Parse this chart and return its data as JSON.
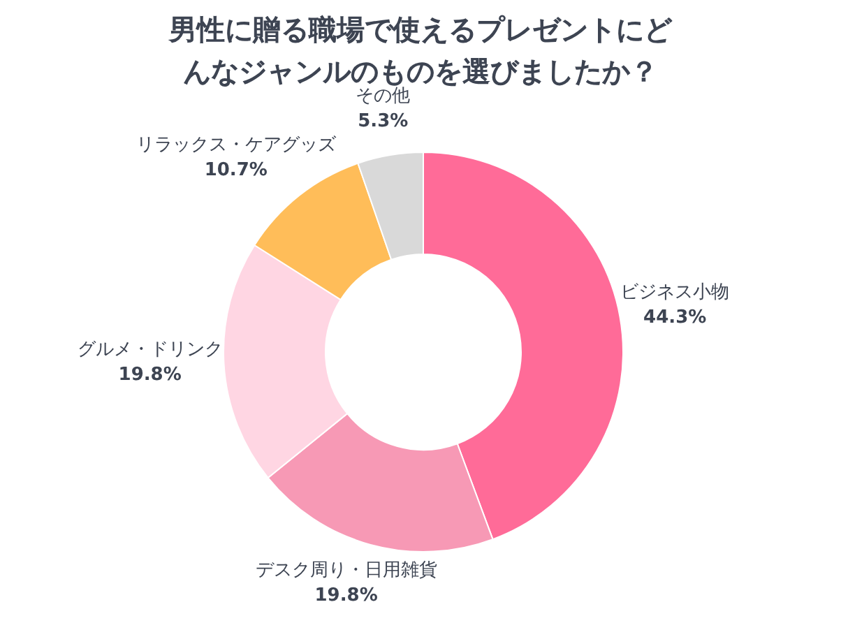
{
  "chart_data": {
    "type": "donut",
    "title": "男性に贈る職場で使えるプレゼントにどんなジャンルのものを選びましたか？",
    "categories": [
      "ビジネス小物",
      "デスク周り・日用雑貨",
      "グルメ・ドリンク",
      "リラックス・ケアグッズ",
      "その他"
    ],
    "values": [
      44.3,
      19.8,
      19.8,
      10.7,
      5.3
    ],
    "value_labels": [
      "44.3%",
      "19.8%",
      "19.8%",
      "10.7%",
      "5.3%"
    ],
    "colors": [
      "#ff6b98",
      "#f799b5",
      "#ffd6e3",
      "#ffbd59",
      "#d9d9d9"
    ]
  }
}
